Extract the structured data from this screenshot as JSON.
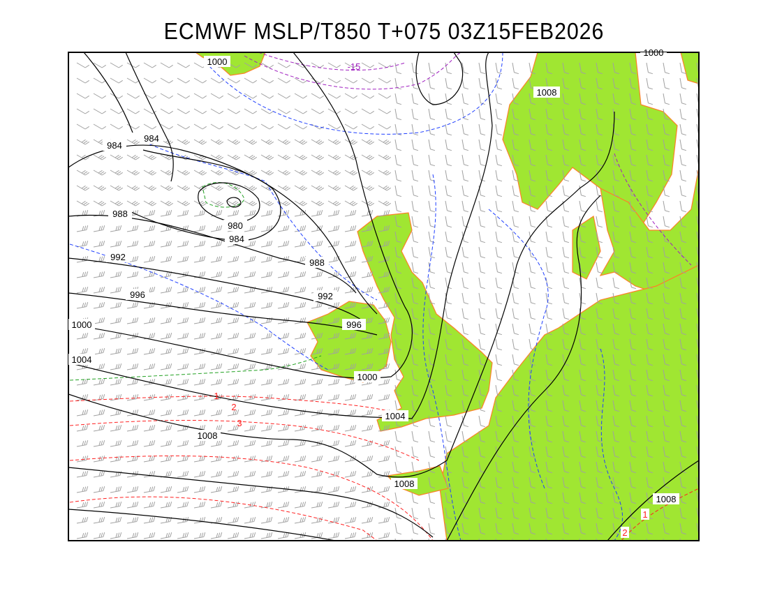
{
  "title": "ECMWF MSLP/T850 T+075 03Z15FEB2026",
  "colors": {
    "land": "#a0e632",
    "coast": "#ff7f27",
    "isobar": "#000000",
    "cold_t850": "#1f3fff",
    "very_cold_t850": "#a020c0",
    "zero_t850": "#20a020",
    "warm_t850": "#ff2020",
    "wind_barbs": "#a0a0a0"
  },
  "isobar_labels": [
    "1000",
    "984",
    "984",
    "980",
    "984",
    "988",
    "988",
    "992",
    "992",
    "996",
    "996",
    "1000",
    "1000",
    "1004",
    "1004",
    "1008",
    "1008",
    "1008",
    "1008",
    "1000"
  ],
  "temperature_labels": [
    "-15",
    "1",
    "2",
    "3",
    "1",
    "2"
  ]
}
